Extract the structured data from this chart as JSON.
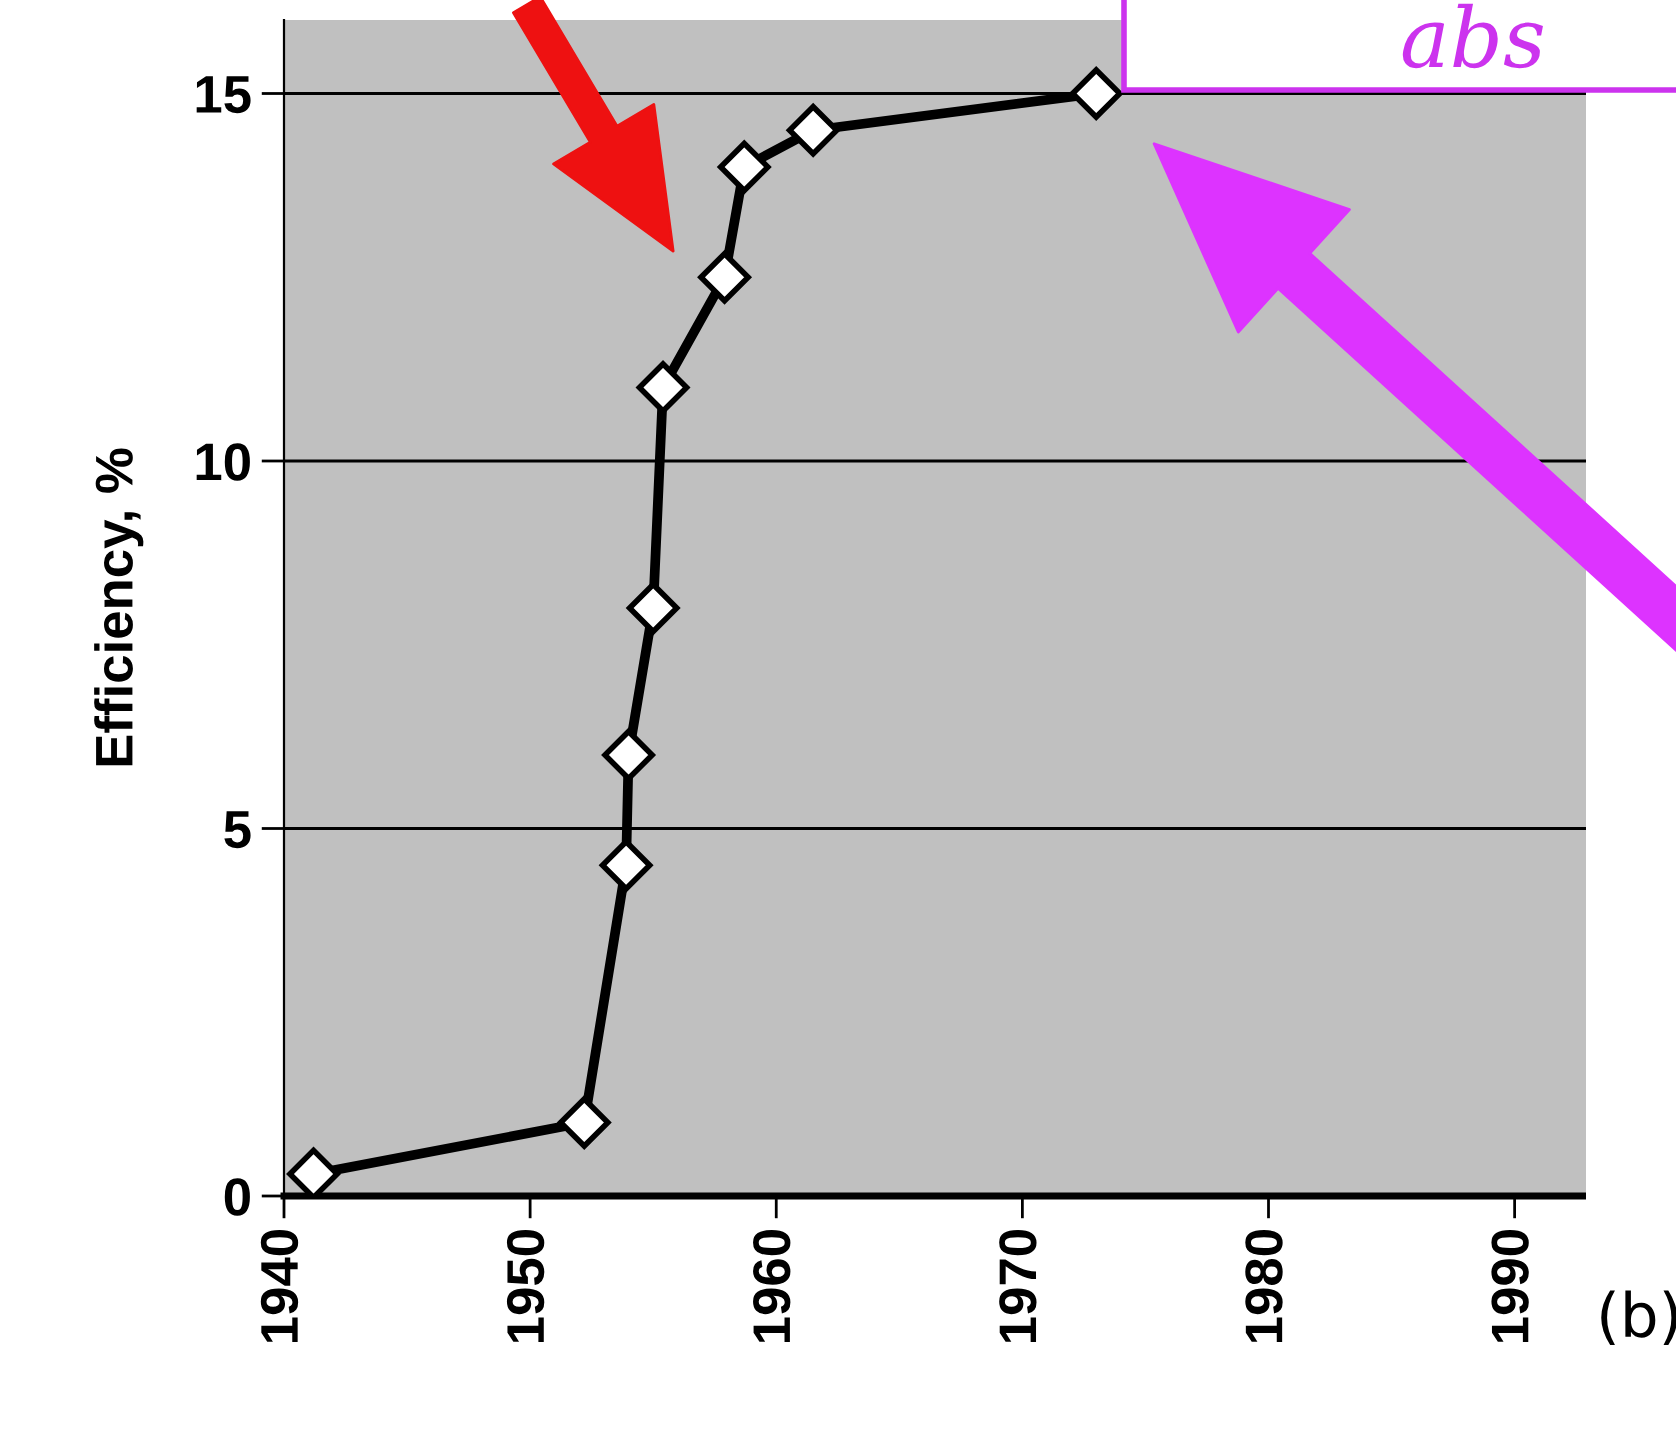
{
  "chart_data": {
    "type": "line",
    "ylabel": "Efficiency, %",
    "x": [
      1941.2,
      1952.2,
      1953.9,
      1954.0,
      1955.0,
      1955.4,
      1957.9,
      1958.7,
      1961.5,
      1973.0
    ],
    "series": [
      {
        "color": "#000000",
        "values": [
          0.3,
          1.0,
          4.5,
          6.0,
          8.0,
          11.0,
          12.5,
          14.0,
          14.5,
          15.0
        ]
      }
    ],
    "xlim": [
      1940,
      1992.9
    ],
    "xticks": [
      1940,
      1950,
      1960,
      1970,
      1980,
      1990
    ],
    "ylim": [
      0,
      16
    ],
    "yticks": [
      0,
      5,
      10,
      15
    ],
    "grid": "y",
    "marker": "diamond",
    "line_style": "solid",
    "annotations": [
      "abs",
      "(b)"
    ]
  }
}
